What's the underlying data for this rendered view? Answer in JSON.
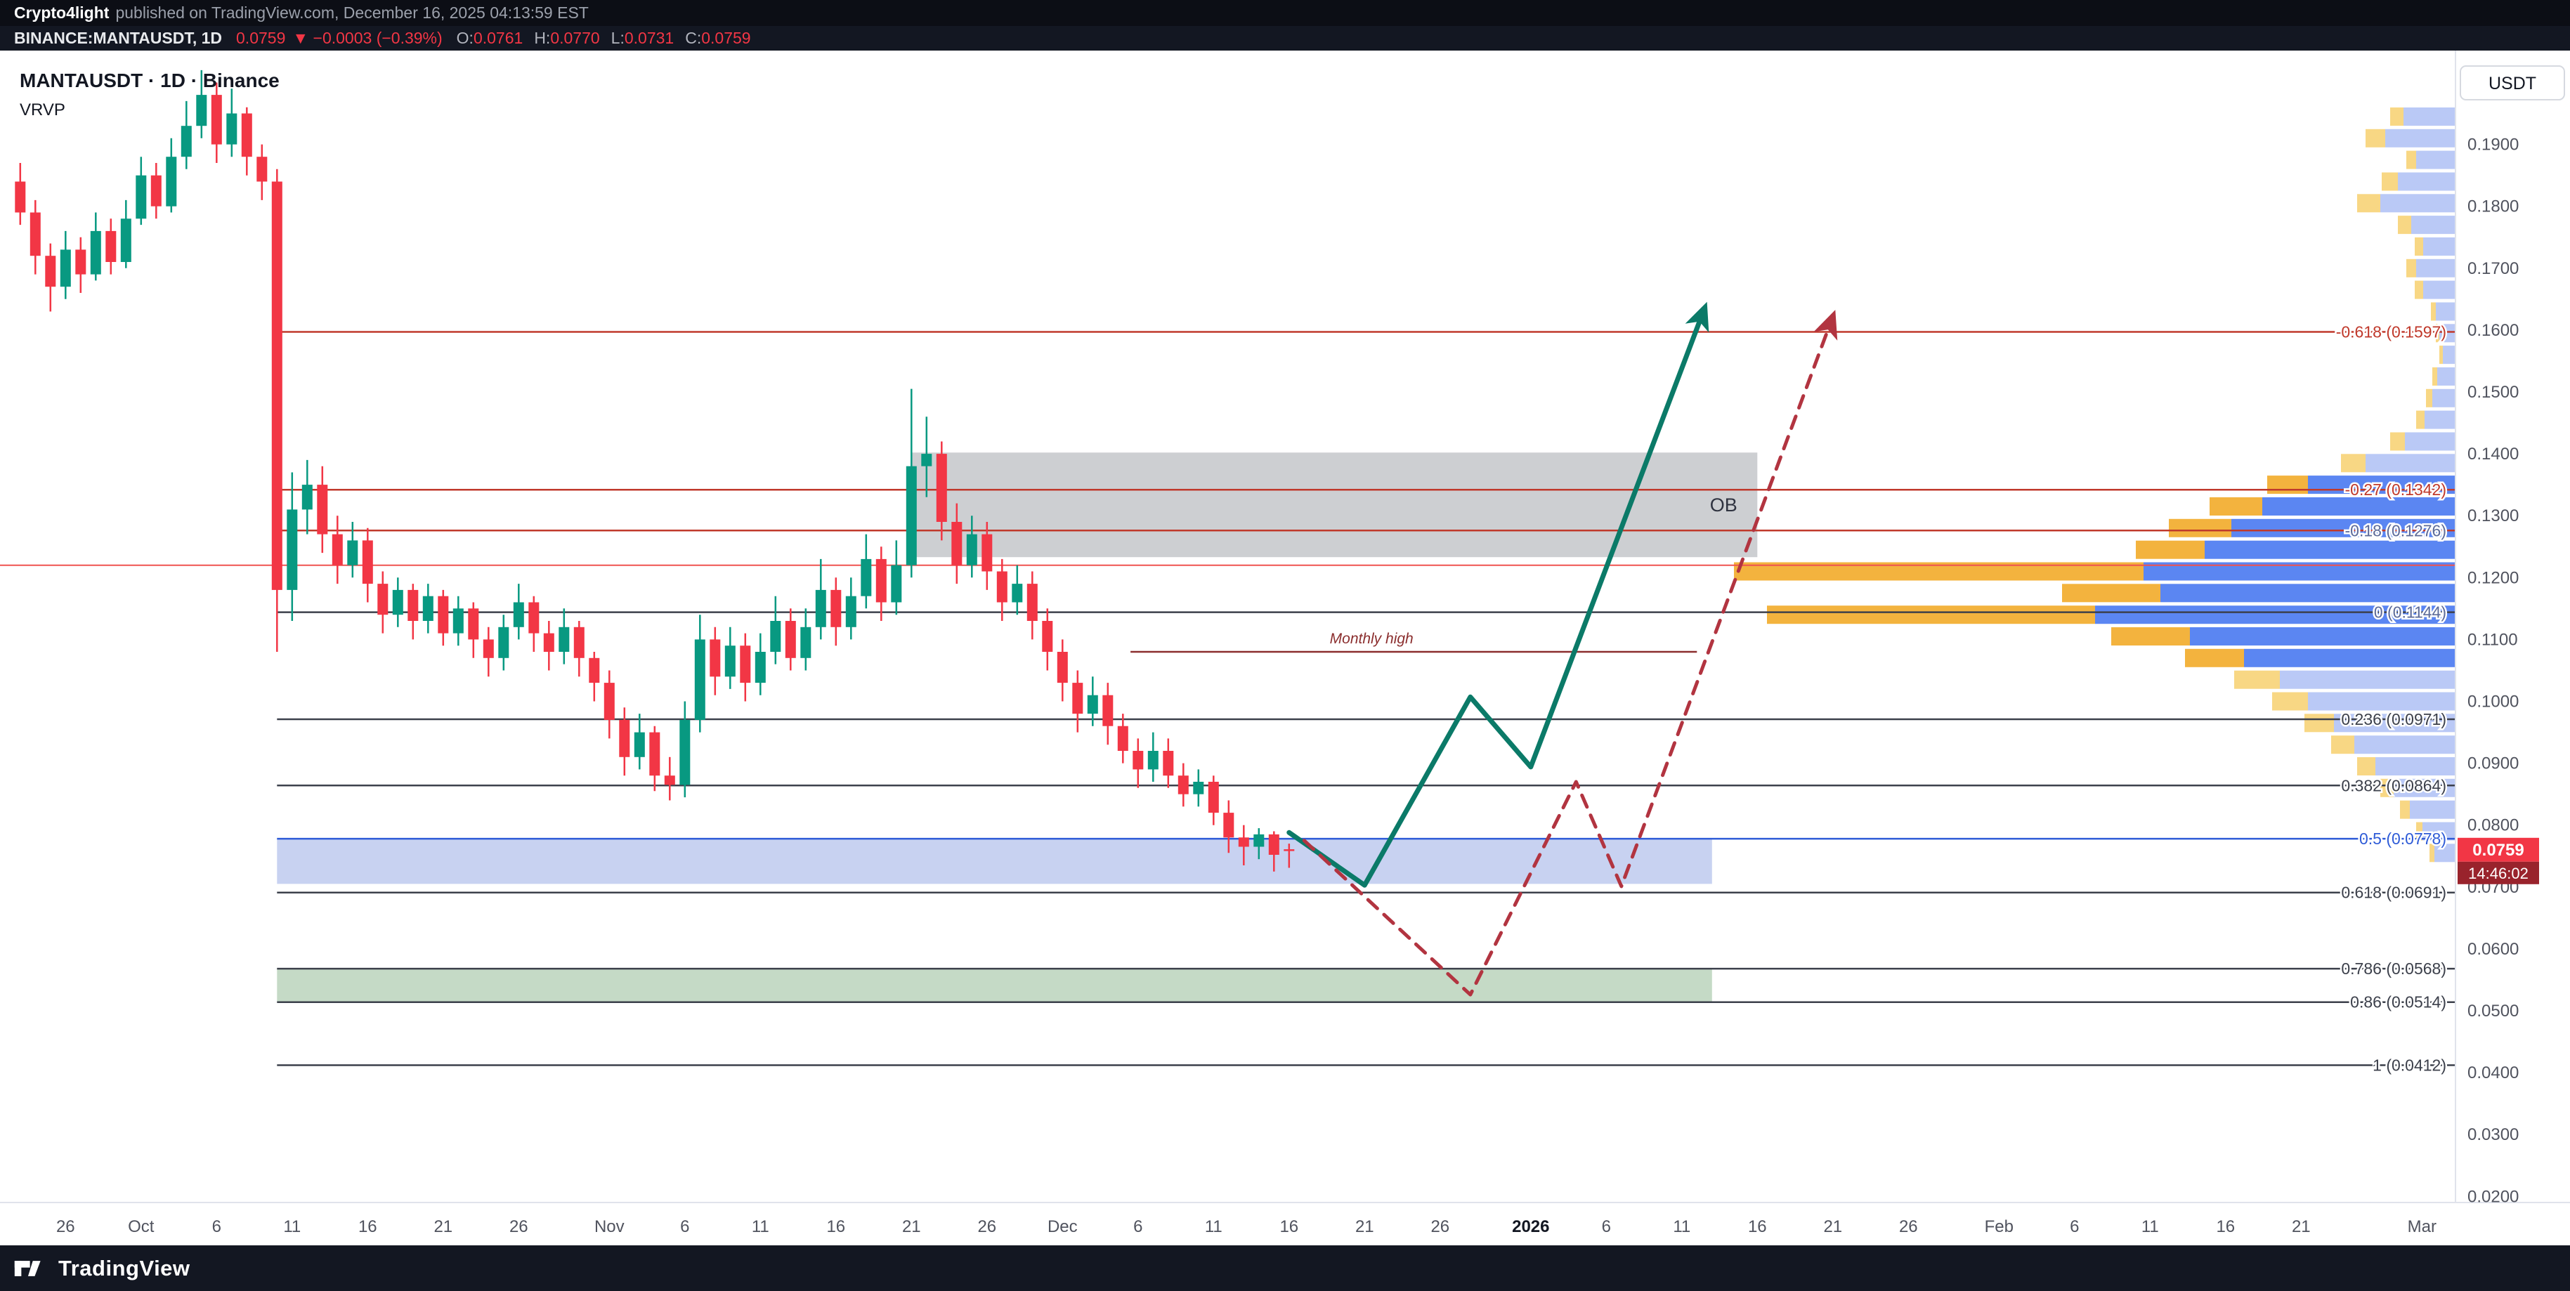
{
  "header": {
    "author": "Crypto4light",
    "published": "published on TradingView.com, December 16, 2025 04:13:59 EST"
  },
  "symbol_bar": {
    "symbol": "BINANCE:MANTAUSDT, 1D",
    "price": "0.0759",
    "change": "▼ −0.0003 (−0.39%)",
    "ohlc": [
      {
        "label": "O:",
        "value": "0.0761"
      },
      {
        "label": "H:",
        "value": "0.0770"
      },
      {
        "label": "L:",
        "value": "0.0731"
      },
      {
        "label": "C:",
        "value": "0.0759"
      }
    ]
  },
  "footer": {
    "brand": "TradingView"
  },
  "chart_data": {
    "type": "candlestick",
    "title": "MANTAUSDT · 1D · Binance",
    "indicator": "VRVP",
    "axis_unit": "USDT",
    "interval": "1D",
    "price_axis": {
      "min": 0.02,
      "max": 0.2,
      "tick_labels": [
        "0.1900",
        "0.1800",
        "0.1700",
        "0.1600",
        "0.1500",
        "0.1400",
        "0.1300",
        "0.1200",
        "0.1100",
        "0.1000",
        "0.0900",
        "0.0800",
        "0.0700",
        "0.0600",
        "0.0500",
        "0.0400",
        "0.0300",
        "0.0200"
      ]
    },
    "time_labels": [
      [
        "26",
        0,
        0
      ],
      [
        "Oct",
        5,
        0
      ],
      [
        "6",
        10,
        0
      ],
      [
        "11",
        15,
        0
      ],
      [
        "16",
        20,
        0
      ],
      [
        "21",
        25,
        0
      ],
      [
        "26",
        30,
        0
      ],
      [
        "Nov",
        36,
        0
      ],
      [
        "6",
        41,
        0
      ],
      [
        "11",
        46,
        0
      ],
      [
        "16",
        51,
        0
      ],
      [
        "21",
        56,
        0
      ],
      [
        "26",
        61,
        0
      ],
      [
        "Dec",
        66,
        0
      ],
      [
        "6",
        71,
        0
      ],
      [
        "11",
        76,
        0
      ],
      [
        "16",
        81,
        0
      ],
      [
        "21",
        86,
        0
      ],
      [
        "26",
        91,
        0
      ],
      [
        "2026",
        97,
        1
      ],
      [
        "6",
        102,
        0
      ],
      [
        "11",
        107,
        0
      ],
      [
        "16",
        112,
        0
      ],
      [
        "21",
        117,
        0
      ],
      [
        "26",
        122,
        0
      ],
      [
        "Feb",
        128,
        0
      ],
      [
        "6",
        133,
        0
      ],
      [
        "11",
        138,
        0
      ],
      [
        "16",
        143,
        0
      ],
      [
        "21",
        148,
        0
      ],
      [
        "Mar",
        156,
        0
      ]
    ],
    "candles": [
      [
        -3,
        0.184,
        0.187,
        0.177,
        0.179
      ],
      [
        -2,
        0.179,
        0.181,
        0.169,
        0.172
      ],
      [
        -1,
        0.172,
        0.174,
        0.163,
        0.167
      ],
      [
        0,
        0.167,
        0.176,
        0.165,
        0.173
      ],
      [
        1,
        0.173,
        0.175,
        0.166,
        0.169
      ],
      [
        2,
        0.169,
        0.179,
        0.168,
        0.176
      ],
      [
        3,
        0.176,
        0.178,
        0.169,
        0.171
      ],
      [
        4,
        0.171,
        0.181,
        0.17,
        0.178
      ],
      [
        5,
        0.178,
        0.188,
        0.177,
        0.185
      ],
      [
        6,
        0.185,
        0.187,
        0.178,
        0.18
      ],
      [
        7,
        0.18,
        0.191,
        0.179,
        0.188
      ],
      [
        8,
        0.188,
        0.197,
        0.186,
        0.193
      ],
      [
        9,
        0.193,
        0.202,
        0.191,
        0.198
      ],
      [
        10,
        0.198,
        0.2,
        0.187,
        0.19
      ],
      [
        11,
        0.19,
        0.199,
        0.188,
        0.195
      ],
      [
        12,
        0.195,
        0.196,
        0.185,
        0.188
      ],
      [
        13,
        0.188,
        0.19,
        0.181,
        0.184
      ],
      [
        14,
        0.184,
        0.186,
        0.108,
        0.118
      ],
      [
        15,
        0.118,
        0.137,
        0.113,
        0.131
      ],
      [
        16,
        0.131,
        0.139,
        0.127,
        0.135
      ],
      [
        17,
        0.135,
        0.138,
        0.124,
        0.127
      ],
      [
        18,
        0.127,
        0.13,
        0.119,
        0.122
      ],
      [
        19,
        0.122,
        0.129,
        0.12,
        0.126
      ],
      [
        20,
        0.126,
        0.128,
        0.116,
        0.119
      ],
      [
        21,
        0.119,
        0.121,
        0.111,
        0.114
      ],
      [
        22,
        0.114,
        0.12,
        0.112,
        0.118
      ],
      [
        23,
        0.118,
        0.119,
        0.11,
        0.113
      ],
      [
        24,
        0.113,
        0.119,
        0.111,
        0.117
      ],
      [
        25,
        0.117,
        0.118,
        0.109,
        0.111
      ],
      [
        26,
        0.111,
        0.117,
        0.109,
        0.115
      ],
      [
        27,
        0.115,
        0.116,
        0.107,
        0.11
      ],
      [
        28,
        0.11,
        0.112,
        0.104,
        0.107
      ],
      [
        29,
        0.107,
        0.114,
        0.105,
        0.112
      ],
      [
        30,
        0.112,
        0.119,
        0.11,
        0.116
      ],
      [
        31,
        0.116,
        0.117,
        0.108,
        0.111
      ],
      [
        32,
        0.111,
        0.113,
        0.105,
        0.108
      ],
      [
        33,
        0.108,
        0.115,
        0.106,
        0.112
      ],
      [
        34,
        0.112,
        0.113,
        0.104,
        0.107
      ],
      [
        35,
        0.107,
        0.108,
        0.1,
        0.103
      ],
      [
        36,
        0.103,
        0.105,
        0.094,
        0.097
      ],
      [
        37,
        0.097,
        0.099,
        0.088,
        0.091
      ],
      [
        38,
        0.091,
        0.098,
        0.089,
        0.095
      ],
      [
        39,
        0.095,
        0.096,
        0.0855,
        0.088
      ],
      [
        40,
        0.088,
        0.091,
        0.084,
        0.0865
      ],
      [
        41,
        0.0865,
        0.1,
        0.0845,
        0.097
      ],
      [
        42,
        0.097,
        0.114,
        0.095,
        0.11
      ],
      [
        43,
        0.11,
        0.112,
        0.101,
        0.104
      ],
      [
        44,
        0.104,
        0.112,
        0.102,
        0.109
      ],
      [
        45,
        0.109,
        0.111,
        0.1,
        0.103
      ],
      [
        46,
        0.103,
        0.111,
        0.101,
        0.108
      ],
      [
        47,
        0.108,
        0.117,
        0.106,
        0.113
      ],
      [
        48,
        0.113,
        0.115,
        0.105,
        0.107
      ],
      [
        49,
        0.107,
        0.115,
        0.105,
        0.112
      ],
      [
        50,
        0.112,
        0.123,
        0.11,
        0.118
      ],
      [
        51,
        0.118,
        0.12,
        0.109,
        0.112
      ],
      [
        52,
        0.112,
        0.12,
        0.11,
        0.117
      ],
      [
        53,
        0.117,
        0.127,
        0.115,
        0.123
      ],
      [
        54,
        0.123,
        0.125,
        0.113,
        0.116
      ],
      [
        55,
        0.116,
        0.126,
        0.114,
        0.122
      ],
      [
        56,
        0.122,
        0.1505,
        0.12,
        0.138
      ],
      [
        57,
        0.138,
        0.146,
        0.133,
        0.14
      ],
      [
        58,
        0.14,
        0.142,
        0.126,
        0.129
      ],
      [
        59,
        0.129,
        0.132,
        0.119,
        0.122
      ],
      [
        60,
        0.122,
        0.13,
        0.12,
        0.127
      ],
      [
        61,
        0.127,
        0.129,
        0.118,
        0.121
      ],
      [
        62,
        0.121,
        0.123,
        0.113,
        0.116
      ],
      [
        63,
        0.116,
        0.122,
        0.114,
        0.119
      ],
      [
        64,
        0.119,
        0.121,
        0.11,
        0.113
      ],
      [
        65,
        0.113,
        0.115,
        0.105,
        0.108
      ],
      [
        66,
        0.108,
        0.11,
        0.1,
        0.103
      ],
      [
        67,
        0.103,
        0.105,
        0.095,
        0.098
      ],
      [
        68,
        0.098,
        0.104,
        0.096,
        0.101
      ],
      [
        69,
        0.101,
        0.103,
        0.093,
        0.096
      ],
      [
        70,
        0.096,
        0.098,
        0.09,
        0.092
      ],
      [
        71,
        0.092,
        0.094,
        0.086,
        0.089
      ],
      [
        72,
        0.089,
        0.095,
        0.087,
        0.092
      ],
      [
        73,
        0.092,
        0.094,
        0.086,
        0.088
      ],
      [
        74,
        0.088,
        0.09,
        0.083,
        0.085
      ],
      [
        75,
        0.085,
        0.089,
        0.083,
        0.087
      ],
      [
        76,
        0.087,
        0.088,
        0.08,
        0.082
      ],
      [
        77,
        0.082,
        0.084,
        0.0755,
        0.078
      ],
      [
        78,
        0.078,
        0.08,
        0.0735,
        0.0765
      ],
      [
        79,
        0.0765,
        0.0795,
        0.0745,
        0.0785
      ],
      [
        80,
        0.0785,
        0.079,
        0.0725,
        0.0752
      ],
      [
        81,
        0.0761,
        0.077,
        0.0731,
        0.0759
      ]
    ],
    "fib_start_day": 14,
    "fib_levels": [
      {
        "label": "-0.618 (0.1597)",
        "price": 0.1597,
        "color": "#c0392b"
      },
      {
        "label": "-0.27 (0.1342)",
        "price": 0.1342,
        "color": "#c0392b"
      },
      {
        "label": "-0.18 (0.1276)",
        "price": 0.1276,
        "color": "#c0392b",
        "label_color": "#5d6b99"
      },
      {
        "label": "0 (0.1144)",
        "price": 0.1144,
        "color": "#3c404b",
        "label_color": "#5d6b99"
      },
      {
        "label": "0.236 (0.0971)",
        "price": 0.0971,
        "color": "#3c404b"
      },
      {
        "label": "0.382 (0.0864)",
        "price": 0.0864,
        "color": "#3c404b"
      },
      {
        "label": "0.5 (0.0778)",
        "price": 0.0778,
        "color": "#2e5bd7"
      },
      {
        "label": "0.618 (0.0691)",
        "price": 0.0691,
        "color": "#3c404b"
      },
      {
        "label": "0.786 (0.0568)",
        "price": 0.0568,
        "color": "#3c404b"
      },
      {
        "label": "0.86 (0.0514)",
        "price": 0.0514,
        "color": "#3c404b"
      },
      {
        "label": "1 (0.0412)",
        "price": 0.0412,
        "color": "#3c404b"
      }
    ],
    "alert_line": {
      "price": 0.122,
      "color": "#ef5350"
    },
    "monthly_high": {
      "label": "Monthly high",
      "price": 0.108,
      "d1": 70.5,
      "d2": 108,
      "color": "#8b2e2e"
    },
    "zones": [
      {
        "name": "blue-demand-zone",
        "price_top": 0.0778,
        "price_bottom": 0.0705,
        "d1": 14,
        "d2": 109,
        "fill": "rgba(88,118,213,0.33)"
      },
      {
        "name": "green-demand-zone",
        "price_top": 0.0568,
        "price_bottom": 0.0514,
        "d1": 14,
        "d2": 109,
        "fill": "rgba(103,159,106,0.38)"
      }
    ],
    "order_block": {
      "label": "OB",
      "price_top": 0.1402,
      "price_bottom": 0.1233,
      "d1": 56,
      "d2": 112,
      "fill": "rgba(130,134,142,0.40)"
    },
    "projections": [
      {
        "name": "primary-projection-path",
        "style": "solid",
        "color": "#0b7a68",
        "width": 7,
        "points": [
          [
            81,
            0.0788
          ],
          [
            86,
            0.0703
          ],
          [
            93,
            0.1007
          ],
          [
            97,
            0.0894
          ],
          [
            108.5,
            0.1635
          ]
        ]
      },
      {
        "name": "alternate-projection-path",
        "style": "dashed",
        "color": "#b23440",
        "width": 5,
        "points": [
          [
            82,
            0.0775
          ],
          [
            93,
            0.0526
          ],
          [
            100,
            0.087
          ],
          [
            103,
            0.0701
          ],
          [
            117,
            0.1622
          ]
        ]
      }
    ],
    "volume_profile": {
      "colors": {
        "blue_dark": "#5b86f2",
        "blue_light": "#bac9f6",
        "yellow_dark": "#f3b33e",
        "yellow_light": "#f8d784"
      },
      "rows": [
        [
          0.1945,
          93,
          19,
          0
        ],
        [
          0.191,
          128,
          28,
          0
        ],
        [
          0.1875,
          70,
          14,
          0
        ],
        [
          0.184,
          105,
          23,
          0
        ],
        [
          0.1805,
          140,
          33,
          0
        ],
        [
          0.177,
          82,
          19,
          0
        ],
        [
          0.1735,
          58,
          12,
          0
        ],
        [
          0.17,
          70,
          14,
          0
        ],
        [
          0.1665,
          58,
          12,
          0
        ],
        [
          0.163,
          35,
          7,
          0
        ],
        [
          0.1595,
          28,
          5,
          0
        ],
        [
          0.156,
          23,
          5,
          0
        ],
        [
          0.1525,
          33,
          7,
          0
        ],
        [
          0.149,
          42,
          9,
          0
        ],
        [
          0.1455,
          56,
          12,
          0
        ],
        [
          0.142,
          93,
          21,
          0
        ],
        [
          0.1385,
          163,
          35,
          0
        ],
        [
          0.135,
          268,
          58,
          1
        ],
        [
          0.1315,
          350,
          75,
          1
        ],
        [
          0.128,
          408,
          89,
          1
        ],
        [
          0.1245,
          455,
          98,
          1
        ],
        [
          0.121,
          1027,
          583,
          1
        ],
        [
          0.1175,
          560,
          140,
          1
        ],
        [
          0.114,
          980,
          467,
          1
        ],
        [
          0.1105,
          490,
          112,
          1
        ],
        [
          0.107,
          385,
          84,
          1
        ],
        [
          0.1035,
          315,
          65,
          0
        ],
        [
          0.1,
          261,
          51,
          0
        ],
        [
          0.0965,
          215,
          42,
          0
        ],
        [
          0.093,
          177,
          33,
          0
        ],
        [
          0.0895,
          140,
          26,
          0
        ],
        [
          0.086,
          107,
          19,
          0
        ],
        [
          0.0825,
          79,
          14,
          0
        ],
        [
          0.079,
          56,
          9,
          0
        ],
        [
          0.0755,
          37,
          7,
          0
        ]
      ]
    },
    "last_price_label": "0.0759",
    "countdown": "14:46:02",
    "price_label_colors": {
      "price_bg": "#f23645",
      "countdown_bg": "#99232c"
    },
    "candle_colors": {
      "up": "#089981",
      "down": "#f23645"
    }
  }
}
